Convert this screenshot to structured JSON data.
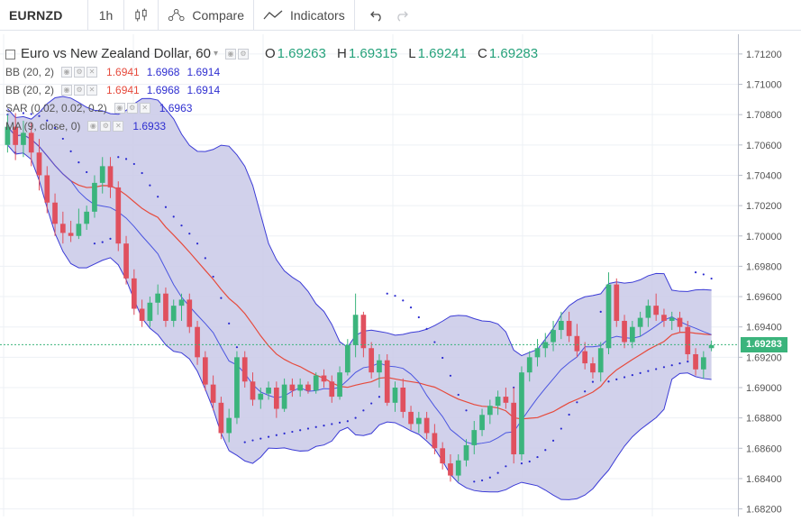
{
  "toolbar": {
    "symbol": "EURNZD",
    "interval": "1h",
    "compare_label": "Compare",
    "indicators_label": "Indicators",
    "chart_type_icon": "candles-icon",
    "compare_icon": "compare-icon",
    "indicators_icon": "indicators-icon",
    "undo_icon": "undo-icon",
    "redo_icon": "redo-icon"
  },
  "legend": {
    "title": "Euro vs New Zealand Dollar, 60",
    "ohlc": {
      "o_label": "O",
      "o": "1.69263",
      "h_label": "H",
      "h": "1.69315",
      "l_label": "L",
      "l": "1.69241",
      "c_label": "C",
      "c": "1.69283"
    },
    "indicators": [
      {
        "name": "BB (20, 2)",
        "values": [
          "1.6941",
          "1.6968",
          "1.6914"
        ]
      },
      {
        "name": "BB (20, 2)",
        "values": [
          "1.6941",
          "1.6968",
          "1.6914"
        ]
      },
      {
        "name": "SAR (0.02, 0.02, 0.2)",
        "values": [
          "1.6963"
        ]
      },
      {
        "name": "MA (9, close, 0)",
        "values": [
          "1.6933"
        ]
      }
    ]
  },
  "colors": {
    "up": "#3bb47c",
    "down": "#e0505e",
    "band_fill": "#c9c9e8",
    "band_line": "#3b3bd6",
    "basis_line": "#e64a3c",
    "ma_line": "#4a55e0",
    "sar": "#2a2ad0",
    "grid": "#edf0f5",
    "last_price_line": "#3bb47c",
    "bb_mid_text": "#e64a3c",
    "bb_band_text": "#2e2ed0"
  },
  "price_scale": {
    "ticks": [
      "1.71200",
      "1.71000",
      "1.70800",
      "1.70600",
      "1.70400",
      "1.70200",
      "1.70000",
      "1.69800",
      "1.69600",
      "1.69400",
      "1.69200",
      "1.69000",
      "1.68800",
      "1.68600",
      "1.68400",
      "1.68200"
    ],
    "last_price": "1.69283"
  },
  "chart_data": {
    "type": "candlestick",
    "symbol": "EURNZD",
    "interval": "60",
    "ylim": [
      1.6815,
      1.7133
    ],
    "grid": true,
    "candles_ohlc": [
      [
        1.706,
        1.708,
        1.7055,
        1.7072
      ],
      [
        1.7072,
        1.7081,
        1.705,
        1.706
      ],
      [
        1.706,
        1.7076,
        1.7052,
        1.7068
      ],
      [
        1.7068,
        1.7075,
        1.7046,
        1.7055
      ],
      [
        1.7055,
        1.7064,
        1.703,
        1.704
      ],
      [
        1.704,
        1.7046,
        1.7015,
        1.7022
      ],
      [
        1.7022,
        1.7028,
        1.7,
        1.7008
      ],
      [
        1.7008,
        1.7016,
        1.6995,
        1.7002
      ],
      [
        1.7002,
        1.701,
        1.6996,
        1.7
      ],
      [
        1.7,
        1.7018,
        1.6998,
        1.7008
      ],
      [
        1.7008,
        1.702,
        1.7004,
        1.7016
      ],
      [
        1.7016,
        1.704,
        1.7012,
        1.7035
      ],
      [
        1.7035,
        1.7052,
        1.7028,
        1.7046
      ],
      [
        1.7046,
        1.7052,
        1.7025,
        1.7032
      ],
      [
        1.7032,
        1.7036,
        1.699,
        1.6995
      ],
      [
        1.6995,
        1.7,
        1.6968,
        1.6972
      ],
      [
        1.6972,
        1.6978,
        1.6948,
        1.6952
      ],
      [
        1.6952,
        1.6958,
        1.694,
        1.6944
      ],
      [
        1.6944,
        1.696,
        1.694,
        1.6956
      ],
      [
        1.6956,
        1.6968,
        1.6948,
        1.6962
      ],
      [
        1.6962,
        1.6966,
        1.694,
        1.6944
      ],
      [
        1.6944,
        1.6958,
        1.694,
        1.6954
      ],
      [
        1.6954,
        1.6962,
        1.6944,
        1.6958
      ],
      [
        1.6958,
        1.6962,
        1.6936,
        1.694
      ],
      [
        1.694,
        1.6944,
        1.6915,
        1.692
      ],
      [
        1.692,
        1.6924,
        1.6898,
        1.6902
      ],
      [
        1.6902,
        1.6908,
        1.6885,
        1.689
      ],
      [
        1.689,
        1.6894,
        1.6866,
        1.687
      ],
      [
        1.687,
        1.6886,
        1.6864,
        1.688
      ],
      [
        1.688,
        1.6924,
        1.6876,
        1.692
      ],
      [
        1.692,
        1.6924,
        1.69,
        1.6904
      ],
      [
        1.6904,
        1.691,
        1.6888,
        1.6892
      ],
      [
        1.6892,
        1.69,
        1.6886,
        1.6896
      ],
      [
        1.6896,
        1.6904,
        1.6892,
        1.69
      ],
      [
        1.69,
        1.6904,
        1.688,
        1.6886
      ],
      [
        1.6886,
        1.6906,
        1.6884,
        1.6902
      ],
      [
        1.6902,
        1.6906,
        1.6894,
        1.6898
      ],
      [
        1.6898,
        1.6906,
        1.6894,
        1.6902
      ],
      [
        1.6902,
        1.6904,
        1.6896,
        1.6898
      ],
      [
        1.6898,
        1.691,
        1.6896,
        1.6908
      ],
      [
        1.6908,
        1.6912,
        1.69,
        1.6904
      ],
      [
        1.6904,
        1.6908,
        1.689,
        1.6894
      ],
      [
        1.6894,
        1.6914,
        1.6892,
        1.691
      ],
      [
        1.691,
        1.6932,
        1.6908,
        1.6928
      ],
      [
        1.6928,
        1.6962,
        1.692,
        1.6948
      ],
      [
        1.6948,
        1.695,
        1.692,
        1.6926
      ],
      [
        1.6926,
        1.693,
        1.6906,
        1.691
      ],
      [
        1.691,
        1.6922,
        1.69,
        1.6918
      ],
      [
        1.6918,
        1.6922,
        1.6888,
        1.689
      ],
      [
        1.689,
        1.6904,
        1.6884,
        1.69
      ],
      [
        1.69,
        1.6906,
        1.688,
        1.6884
      ],
      [
        1.6884,
        1.6888,
        1.6872,
        1.6876
      ],
      [
        1.6876,
        1.6884,
        1.687,
        1.688
      ],
      [
        1.688,
        1.6884,
        1.6866,
        1.687
      ],
      [
        1.687,
        1.6876,
        1.6856,
        1.686
      ],
      [
        1.686,
        1.6864,
        1.6846,
        1.685
      ],
      [
        1.685,
        1.6856,
        1.6838,
        1.6842
      ],
      [
        1.6842,
        1.6856,
        1.6838,
        1.6852
      ],
      [
        1.6852,
        1.6866,
        1.6848,
        1.6862
      ],
      [
        1.6862,
        1.6878,
        1.6856,
        1.6872
      ],
      [
        1.6872,
        1.6886,
        1.6868,
        1.6882
      ],
      [
        1.6882,
        1.6892,
        1.6876,
        1.6888
      ],
      [
        1.6888,
        1.6898,
        1.6882,
        1.6894
      ],
      [
        1.6894,
        1.69,
        1.6886,
        1.689
      ],
      [
        1.689,
        1.69,
        1.685,
        1.6856
      ],
      [
        1.6856,
        1.6914,
        1.6852,
        1.691
      ],
      [
        1.691,
        1.6924,
        1.6904,
        1.692
      ],
      [
        1.692,
        1.6932,
        1.6914,
        1.6926
      ],
      [
        1.6926,
        1.6936,
        1.692,
        1.693
      ],
      [
        1.693,
        1.6944,
        1.6924,
        1.6938
      ],
      [
        1.6938,
        1.695,
        1.6932,
        1.6944
      ],
      [
        1.6944,
        1.695,
        1.693,
        1.6934
      ],
      [
        1.6934,
        1.6942,
        1.692,
        1.6924
      ],
      [
        1.6924,
        1.693,
        1.6912,
        1.6916
      ],
      [
        1.6916,
        1.692,
        1.6906,
        1.691
      ],
      [
        1.691,
        1.693,
        1.6904,
        1.6926
      ],
      [
        1.6926,
        1.6976,
        1.6922,
        1.6968
      ],
      [
        1.6968,
        1.6972,
        1.694,
        1.6944
      ],
      [
        1.6944,
        1.6948,
        1.6926,
        1.693
      ],
      [
        1.693,
        1.6944,
        1.6926,
        1.694
      ],
      [
        1.694,
        1.695,
        1.6934,
        1.6946
      ],
      [
        1.6946,
        1.6958,
        1.694,
        1.6954
      ],
      [
        1.6954,
        1.6962,
        1.6944,
        1.6948
      ],
      [
        1.6948,
        1.6952,
        1.694,
        1.6944
      ],
      [
        1.6944,
        1.695,
        1.6938,
        1.6946
      ],
      [
        1.6946,
        1.695,
        1.6936,
        1.694
      ],
      [
        1.694,
        1.6944,
        1.6918,
        1.6922
      ],
      [
        1.6922,
        1.6926,
        1.6908,
        1.6912
      ],
      [
        1.6912,
        1.6924,
        1.6906,
        1.692
      ],
      [
        1.6926,
        1.6931,
        1.6924,
        1.6928
      ]
    ],
    "indicators": {
      "bollinger": {
        "period": 20,
        "mult": 2
      },
      "sar": {
        "start": 0.02,
        "step": 0.02,
        "max": 0.2
      },
      "ma": {
        "period": 9,
        "source": "close"
      }
    }
  }
}
